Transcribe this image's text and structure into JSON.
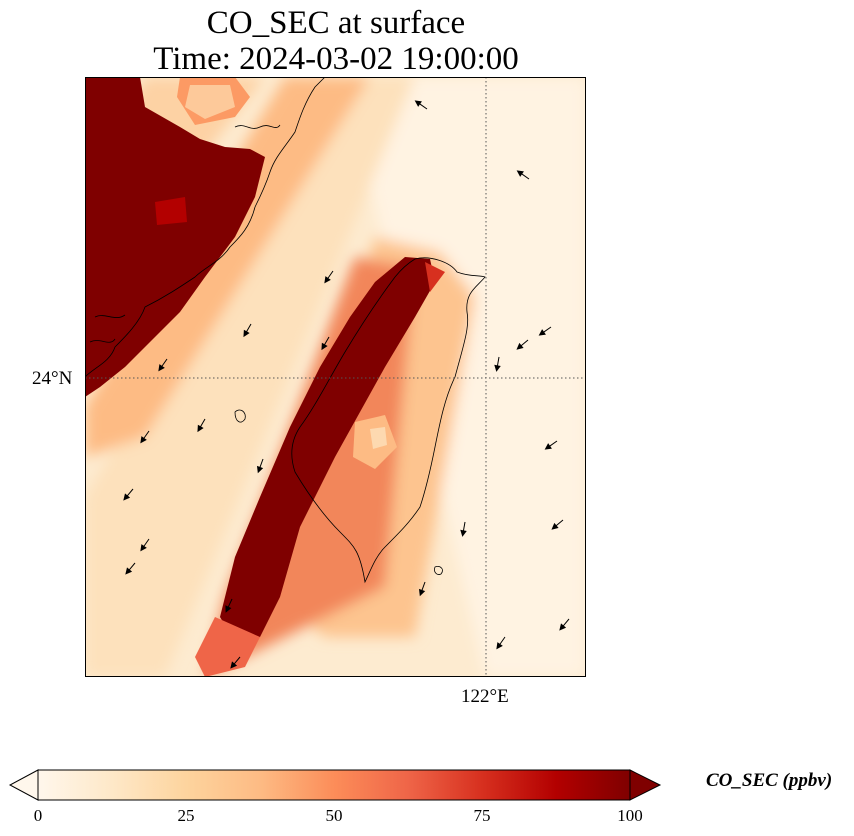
{
  "title": {
    "line1": "CO_SEC at surface",
    "line2": "Time: 2024-03-02 19:00:00"
  },
  "map": {
    "lat_tick": "24°N",
    "lon_tick": "122°E",
    "gridline_color": "#555555",
    "coastline_color": "#000000",
    "wind_arrow_color": "#000000"
  },
  "colorbar": {
    "label": "CO_SEC (ppbv)",
    "colormap": "OrRd",
    "colors": [
      "#fff7ec",
      "#fee8c8",
      "#fdd49e",
      "#fdbb84",
      "#fc8d59",
      "#ef6548",
      "#d7301f",
      "#b30000",
      "#7f0000"
    ],
    "ticks": [
      "0",
      "25",
      "50",
      "75",
      "100"
    ],
    "min": 0,
    "max": 100,
    "extend": "both"
  }
}
